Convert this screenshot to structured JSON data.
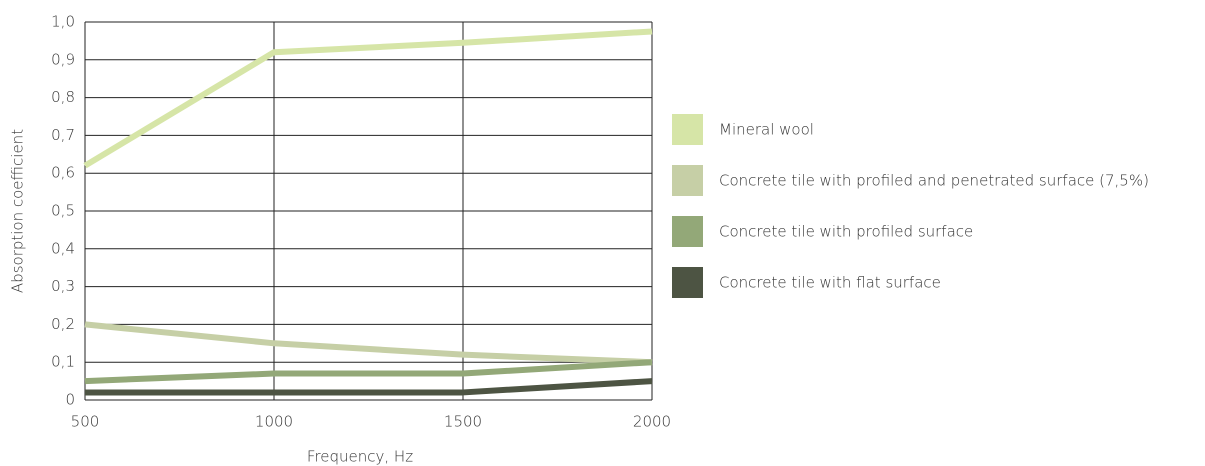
{
  "chart_data": {
    "type": "line",
    "x_label": "Frequency, Hz",
    "y_label": "Absorption coefficient",
    "x": [
      500,
      1000,
      1500,
      2000
    ],
    "xlim": [
      500,
      2000
    ],
    "xticks": [
      500,
      1000,
      1500,
      2000
    ],
    "ylim": [
      0,
      1.0
    ],
    "yticks": [
      0,
      {
        "value": 0.1,
        "label": "0,1"
      },
      {
        "value": 0.2,
        "label": "0,2"
      },
      {
        "value": 0.3,
        "label": "0,3"
      },
      {
        "value": 0.4,
        "label": "0,4"
      },
      {
        "value": 0.5,
        "label": "0,5"
      },
      {
        "value": 0.6,
        "label": "0,6"
      },
      {
        "value": 0.7,
        "label": "0,7"
      },
      {
        "value": 0.8,
        "label": "0,8"
      },
      {
        "value": 0.9,
        "label": "0,9"
      },
      {
        "value": 1.0,
        "label": "1,0"
      }
    ],
    "grid": true,
    "legend": "right",
    "series": [
      {
        "name": "Mineral wool",
        "color": "#d6e5a7",
        "values": [
          0.62,
          0.92,
          0.945,
          0.975
        ]
      },
      {
        "name": "Concrete tile with profiled and penetrated surface (7,5%)",
        "color": "#c6cfa6",
        "values": [
          0.2,
          0.15,
          0.12,
          0.1
        ]
      },
      {
        "name": "Concrete tile with profiled surface",
        "color": "#93a878",
        "values": [
          0.05,
          0.07,
          0.07,
          0.1
        ]
      },
      {
        "name": "Concrete tile with flat surface",
        "color": "#4d5443",
        "values": [
          0.02,
          0.02,
          0.02,
          0.05
        ]
      }
    ]
  }
}
